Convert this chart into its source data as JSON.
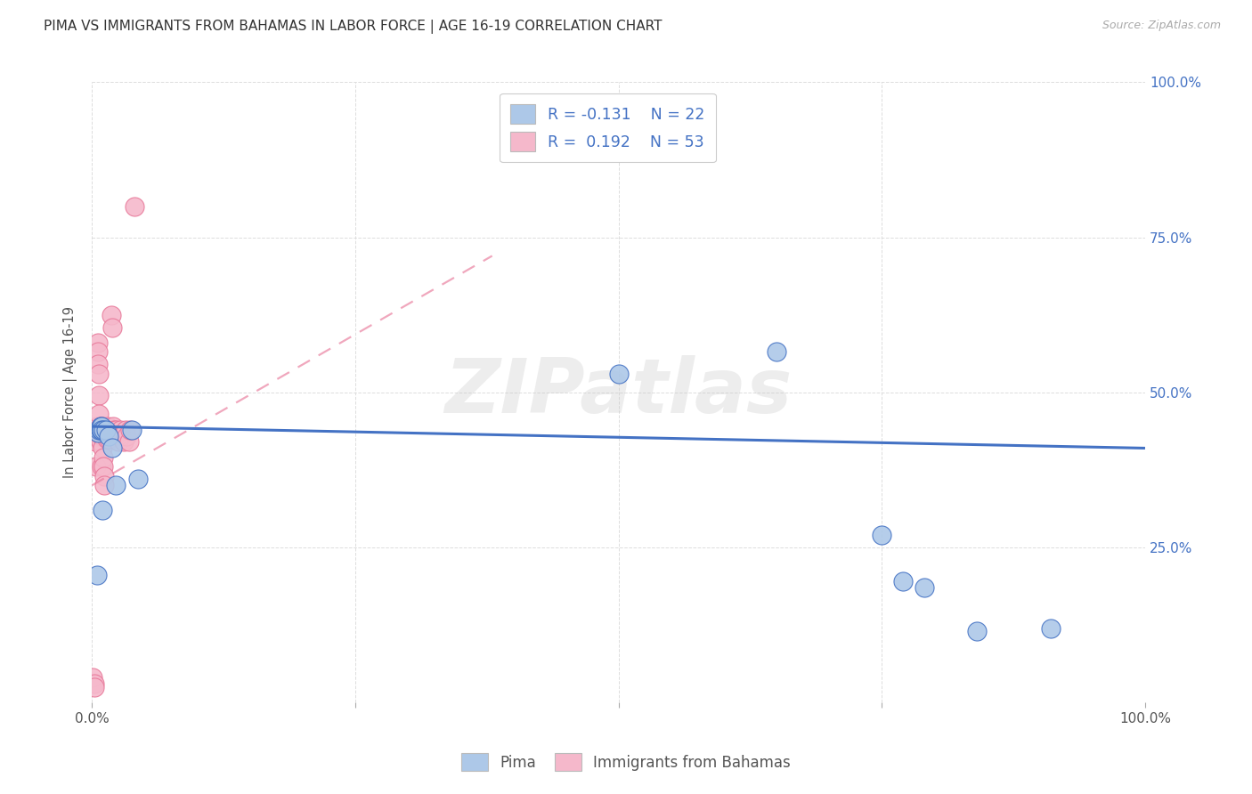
{
  "title": "PIMA VS IMMIGRANTS FROM BAHAMAS IN LABOR FORCE | AGE 16-19 CORRELATION CHART",
  "source": "Source: ZipAtlas.com",
  "ylabel": "In Labor Force | Age 16-19",
  "xlim": [
    0.0,
    1.0
  ],
  "ylim": [
    0.0,
    1.0
  ],
  "xticks": [
    0.0,
    0.25,
    0.5,
    0.75,
    1.0
  ],
  "xticklabels": [
    "0.0%",
    "",
    "",
    "",
    "100.0%"
  ],
  "yticks": [
    0.25,
    0.5,
    0.75,
    1.0
  ],
  "right_yticklabels": [
    "25.0%",
    "50.0%",
    "75.0%",
    "100.0%"
  ],
  "pima_R": -0.131,
  "pima_N": 22,
  "bahamas_R": 0.192,
  "bahamas_N": 53,
  "pima_color": "#adc8e8",
  "bahamas_color": "#f5b8cb",
  "pima_edge_color": "#4472c4",
  "bahamas_edge_color": "#e8799a",
  "pima_line_color": "#4472c4",
  "bahamas_line_color": "#e8799a",
  "legend_label_pima": "Pima",
  "legend_label_bahamas": "Immigrants from Bahamas",
  "pima_x": [
    0.005,
    0.006,
    0.007,
    0.008,
    0.008,
    0.009,
    0.009,
    0.01,
    0.011,
    0.013,
    0.016,
    0.019,
    0.023,
    0.038,
    0.044,
    0.5,
    0.65,
    0.75,
    0.77,
    0.79,
    0.84,
    0.91
  ],
  "pima_y": [
    0.205,
    0.435,
    0.44,
    0.44,
    0.445,
    0.445,
    0.44,
    0.31,
    0.44,
    0.44,
    0.43,
    0.41,
    0.35,
    0.44,
    0.36,
    0.53,
    0.565,
    0.27,
    0.195,
    0.185,
    0.115,
    0.12
  ],
  "bahamas_x": [
    0.001,
    0.002,
    0.002,
    0.003,
    0.003,
    0.003,
    0.004,
    0.004,
    0.005,
    0.005,
    0.005,
    0.006,
    0.006,
    0.006,
    0.007,
    0.007,
    0.007,
    0.007,
    0.008,
    0.008,
    0.008,
    0.009,
    0.009,
    0.009,
    0.01,
    0.01,
    0.01,
    0.011,
    0.011,
    0.012,
    0.012,
    0.013,
    0.014,
    0.015,
    0.015,
    0.016,
    0.017,
    0.018,
    0.019,
    0.02,
    0.021,
    0.022,
    0.023,
    0.024,
    0.025,
    0.027,
    0.028,
    0.03,
    0.032,
    0.033,
    0.035,
    0.036,
    0.04
  ],
  "bahamas_y": [
    0.04,
    0.03,
    0.025,
    0.44,
    0.435,
    0.42,
    0.43,
    0.38,
    0.445,
    0.44,
    0.43,
    0.58,
    0.565,
    0.545,
    0.53,
    0.495,
    0.465,
    0.44,
    0.445,
    0.435,
    0.42,
    0.44,
    0.43,
    0.38,
    0.445,
    0.43,
    0.41,
    0.395,
    0.38,
    0.365,
    0.35,
    0.44,
    0.425,
    0.445,
    0.43,
    0.425,
    0.435,
    0.625,
    0.605,
    0.445,
    0.44,
    0.43,
    0.44,
    0.43,
    0.42,
    0.44,
    0.43,
    0.42,
    0.44,
    0.43,
    0.42,
    0.44,
    0.8
  ],
  "pima_line_x": [
    0.0,
    1.0
  ],
  "pima_line_y": [
    0.445,
    0.41
  ],
  "bahamas_line_x": [
    0.0,
    0.38
  ],
  "bahamas_line_y": [
    0.35,
    0.72
  ],
  "watermark": "ZIPatlas",
  "background_color": "#ffffff",
  "grid_color": "#dddddd"
}
